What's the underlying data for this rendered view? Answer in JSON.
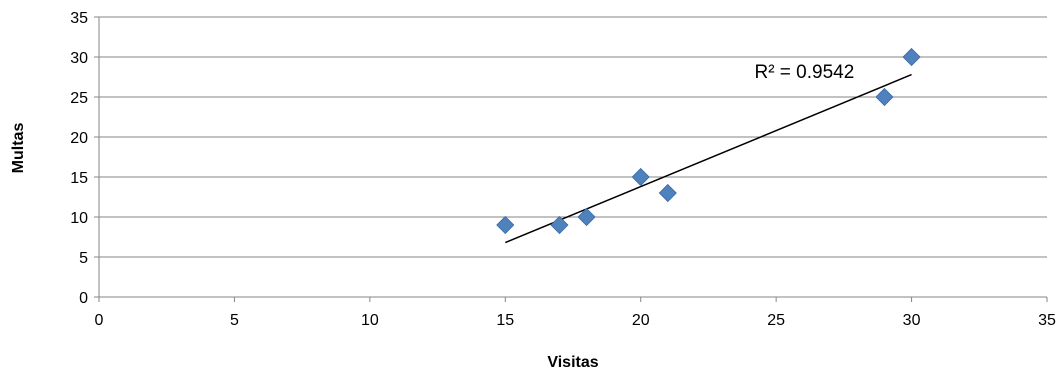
{
  "chart_data": {
    "type": "scatter",
    "title": "",
    "xlabel": "Visitas",
    "ylabel": "Multas",
    "xlim": [
      0,
      35
    ],
    "ylim": [
      0,
      35
    ],
    "xticks": [
      0,
      5,
      10,
      15,
      20,
      25,
      30,
      35
    ],
    "yticks": [
      0,
      5,
      10,
      15,
      20,
      25,
      30,
      35
    ],
    "grid": "horizontal",
    "legend": "none",
    "series": [
      {
        "points": [
          {
            "x": 15,
            "y": 9
          },
          {
            "x": 17,
            "y": 9
          },
          {
            "x": 18,
            "y": 10
          },
          {
            "x": 20,
            "y": 15
          },
          {
            "x": 21,
            "y": 13
          },
          {
            "x": 29,
            "y": 25
          },
          {
            "x": 30,
            "y": 30
          }
        ],
        "marker": "diamond",
        "color": "#4f81bd"
      }
    ],
    "trendline": {
      "type": "linear",
      "from": {
        "x": 15,
        "y": 6.8
      },
      "to": {
        "x": 30,
        "y": 27.8
      },
      "color": "#000000"
    },
    "annotations": [
      {
        "text": "R² = 0.9542",
        "x": 24.2,
        "y": 27.4
      }
    ]
  }
}
